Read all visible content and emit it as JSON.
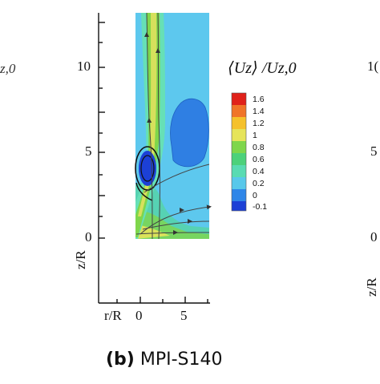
{
  "figure": {
    "caption_tag": "(b)",
    "caption_text": "MPI-S140",
    "variable_label": "⟨Uz⟩ /Uz,0",
    "left_cut_label": "z,0",
    "ylabel": "z/R",
    "xlabel": "r/R",
    "y_ticks": [
      "10",
      "5",
      "0"
    ],
    "x_ticks": [
      "0",
      "5"
    ],
    "right_edge_ticks": [
      "1(",
      "5",
      "0"
    ],
    "right_edge_label": "z/R"
  },
  "chart_data": {
    "type": "heatmap",
    "title": "",
    "xlabel": "r/R",
    "ylabel": "z/R",
    "xlim": [
      -0.8,
      7.0
    ],
    "ylim": [
      -0.2,
      13.0
    ],
    "x_ticks": [
      0,
      5
    ],
    "y_ticks": [
      0,
      5,
      10
    ],
    "legend_title": "⟨Uz⟩ /Uz,0",
    "legend_placement": "right",
    "colorbar": {
      "levels": [
        1.6,
        1.4,
        1.2,
        1,
        0.8,
        0.6,
        0.4,
        0.2,
        0,
        -0.1
      ],
      "level_labels": [
        "1.6",
        "1.4",
        "1.2",
        "1",
        "0.8",
        "0.6",
        "0.4",
        "0.2",
        "0",
        "-0.1"
      ],
      "colors": [
        "#e0211a",
        "#f07428",
        "#f5c12b",
        "#e6e45a",
        "#7fd64b",
        "#4cd17a",
        "#59dbb2",
        "#58c8ea",
        "#2f86e8",
        "#1c40d6"
      ]
    }
  }
}
